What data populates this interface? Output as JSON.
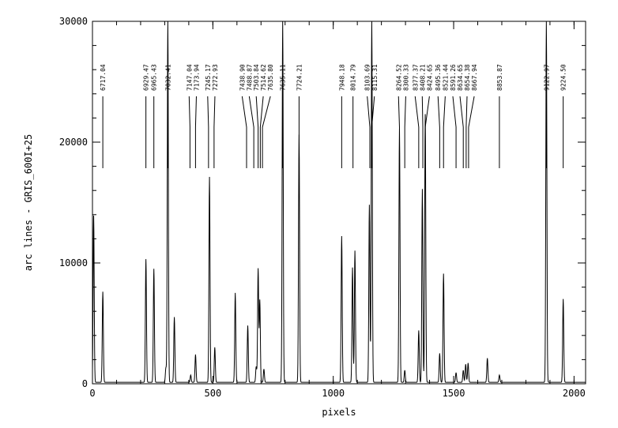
{
  "chart_data": {
    "type": "line",
    "xlabel": "pixels",
    "ylabel": "arc lines - GRIS_600I+25",
    "xlim": [
      0,
      2048
    ],
    "ylim": [
      0,
      30000
    ],
    "x_major_ticks": [
      0,
      500,
      1000,
      1500,
      2000
    ],
    "x_minor_step": 100,
    "y_major_ticks": [
      0,
      10000,
      20000,
      30000
    ],
    "y_minor_step": 2000,
    "x_tick_labels": [
      "0",
      "500",
      "1000",
      "1500",
      "2000"
    ],
    "y_tick_labels": [
      "0",
      "10000",
      "20000",
      "30000"
    ],
    "grid": false,
    "peaks": [
      {
        "x": 5,
        "y": 13800
      },
      {
        "x": 43,
        "y": 7500
      },
      {
        "x": 222,
        "y": 10200
      },
      {
        "x": 255,
        "y": 9400
      },
      {
        "x": 305,
        "y": 1200
      },
      {
        "x": 313,
        "y": 30000
      },
      {
        "x": 340,
        "y": 5400
      },
      {
        "x": 408,
        "y": 600
      },
      {
        "x": 428,
        "y": 2300
      },
      {
        "x": 486,
        "y": 17000
      },
      {
        "x": 508,
        "y": 2900
      },
      {
        "x": 593,
        "y": 7400
      },
      {
        "x": 645,
        "y": 4700
      },
      {
        "x": 680,
        "y": 1300
      },
      {
        "x": 688,
        "y": 9400
      },
      {
        "x": 695,
        "y": 6800
      },
      {
        "x": 712,
        "y": 1100
      },
      {
        "x": 790,
        "y": 30000
      },
      {
        "x": 858,
        "y": 20500
      },
      {
        "x": 1035,
        "y": 12100
      },
      {
        "x": 1080,
        "y": 9500
      },
      {
        "x": 1090,
        "y": 10900
      },
      {
        "x": 1150,
        "y": 14700
      },
      {
        "x": 1160,
        "y": 30000
      },
      {
        "x": 1275,
        "y": 21000
      },
      {
        "x": 1297,
        "y": 1000
      },
      {
        "x": 1355,
        "y": 4300
      },
      {
        "x": 1370,
        "y": 16000
      },
      {
        "x": 1382,
        "y": 22200
      },
      {
        "x": 1442,
        "y": 2400
      },
      {
        "x": 1458,
        "y": 9000
      },
      {
        "x": 1510,
        "y": 800
      },
      {
        "x": 1540,
        "y": 1000
      },
      {
        "x": 1550,
        "y": 1500
      },
      {
        "x": 1560,
        "y": 1600
      },
      {
        "x": 1640,
        "y": 2000
      },
      {
        "x": 1690,
        "y": 600
      },
      {
        "x": 1885,
        "y": 30000
      },
      {
        "x": 1955,
        "y": 6900
      }
    ],
    "line_ids": [
      {
        "label": "6717.04",
        "x": 43
      },
      {
        "label": "6929.47",
        "x": 222
      },
      {
        "label": "6965.43",
        "x": 255
      },
      {
        "label": "7032.41",
        "x": 313
      },
      {
        "label": "7147.04",
        "x": 405
      },
      {
        "label": "7173.94",
        "x": 428
      },
      {
        "label": "7245.17",
        "x": 482
      },
      {
        "label": "7272.93",
        "x": 505
      },
      {
        "label": "7438.90",
        "x": 640
      },
      {
        "label": "7488.87",
        "x": 670
      },
      {
        "label": "7503.84",
        "x": 688
      },
      {
        "label": "7514.62",
        "x": 697
      },
      {
        "label": "7635.80",
        "x": 706
      },
      {
        "label": "7635.11",
        "x": 790
      },
      {
        "label": "7724.21",
        "x": 858
      },
      {
        "label": "7948.18",
        "x": 1035
      },
      {
        "label": "8014.79",
        "x": 1082
      },
      {
        "label": "8103.69",
        "x": 1152
      },
      {
        "label": "8115.31",
        "x": 1160
      },
      {
        "label": "8264.52",
        "x": 1275
      },
      {
        "label": "8300.33",
        "x": 1297
      },
      {
        "label": "8377.37",
        "x": 1355
      },
      {
        "label": "8408.21",
        "x": 1372
      },
      {
        "label": "8424.65",
        "x": 1382
      },
      {
        "label": "8495.36",
        "x": 1442
      },
      {
        "label": "8521.44",
        "x": 1458
      },
      {
        "label": "8591.26",
        "x": 1510
      },
      {
        "label": "8634.65",
        "x": 1540
      },
      {
        "label": "8654.38",
        "x": 1552
      },
      {
        "label": "8667.94",
        "x": 1562
      },
      {
        "label": "8853.87",
        "x": 1690
      },
      {
        "label": "9122.97",
        "x": 1885
      },
      {
        "label": "9224.50",
        "x": 1955
      }
    ]
  }
}
